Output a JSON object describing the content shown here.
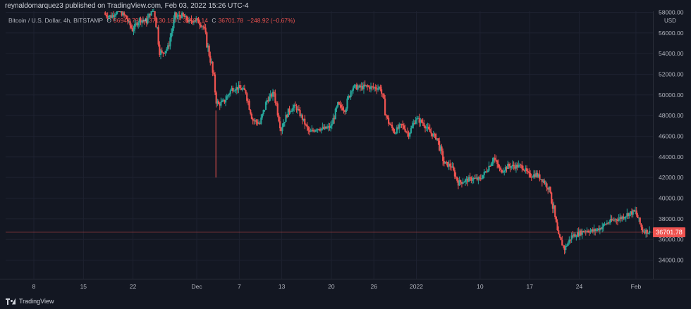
{
  "header": {
    "published_text": "reynaldomarquez3 published on TradingView.com, Feb 03, 2022 15:26 UTC-4"
  },
  "legend": {
    "symbol": "Bitcoin / U.S. Dollar, 4h, BITSTAMP",
    "o_label": "O",
    "o_value": "36947.79",
    "h_label": "H",
    "h_value": "37130.16",
    "l_label": "L",
    "l_value": "36586.14",
    "c_label": "C",
    "c_value": "36701.78",
    "change": "−248.92 (−0.67%)"
  },
  "price_axis": {
    "currency": "USD",
    "current_price": "36701.78",
    "labels": [
      "58000.00",
      "56000.00",
      "54000.00",
      "52000.00",
      "50000.00",
      "48000.00",
      "46000.00",
      "44000.00",
      "42000.00",
      "40000.00",
      "38000.00",
      "36000.00",
      "34000.00"
    ]
  },
  "footer": {
    "brand": "TradingView"
  },
  "colors": {
    "background": "#131722",
    "up": "#26a69a",
    "down": "#ef5350",
    "grid": "#1e2230",
    "text": "#b2b5be"
  },
  "chart_data": {
    "type": "candlestick",
    "title": "Bitcoin / U.S. Dollar, 4h, BITSTAMP",
    "xlabel": "",
    "ylabel": "USD",
    "ylim": [
      32200,
      58100
    ],
    "x_ticks": [
      "8",
      "15",
      "22",
      "Dec",
      "7",
      "13",
      "20",
      "26",
      "2022",
      "10",
      "17",
      "24",
      "Feb"
    ],
    "last_price": 36701.78,
    "grid": true,
    "path_points": [
      {
        "date": "Nov 18",
        "close": 57800
      },
      {
        "date": "Nov 19",
        "close": 57600
      },
      {
        "date": "Nov 20",
        "close": 58200
      },
      {
        "date": "Nov 21",
        "close": 57600
      },
      {
        "date": "Nov 22",
        "close": 56300
      },
      {
        "date": "Nov 23",
        "close": 57300
      },
      {
        "date": "Nov 24",
        "close": 57100
      },
      {
        "date": "Nov 25",
        "close": 58800
      },
      {
        "date": "Nov 26",
        "close": 53900
      },
      {
        "date": "Nov 27",
        "close": 54600
      },
      {
        "date": "Nov 28",
        "close": 57500
      },
      {
        "date": "Nov 29",
        "close": 57700
      },
      {
        "date": "Nov 30",
        "close": 57100
      },
      {
        "date": "Dec 1",
        "close": 57300
      },
      {
        "date": "Dec 2",
        "close": 56600
      },
      {
        "date": "Dec 3",
        "close": 53500
      },
      {
        "date": "Dec 4",
        "close": 49000
      },
      {
        "date": "Dec 5",
        "close": 49400
      },
      {
        "date": "Dec 6",
        "close": 50600
      },
      {
        "date": "Dec 7",
        "close": 50700
      },
      {
        "date": "Dec 8",
        "close": 50300
      },
      {
        "date": "Dec 9",
        "close": 47600
      },
      {
        "date": "Dec 10",
        "close": 47200
      },
      {
        "date": "Dec 11",
        "close": 49500
      },
      {
        "date": "Dec 12",
        "close": 50200
      },
      {
        "date": "Dec 13",
        "close": 46800
      },
      {
        "date": "Dec 14",
        "close": 48400
      },
      {
        "date": "Dec 15",
        "close": 48900
      },
      {
        "date": "Dec 16",
        "close": 47700
      },
      {
        "date": "Dec 17",
        "close": 46300
      },
      {
        "date": "Dec 18",
        "close": 46800
      },
      {
        "date": "Dec 19",
        "close": 46700
      },
      {
        "date": "Dec 20",
        "close": 46900
      },
      {
        "date": "Dec 21",
        "close": 49000
      },
      {
        "date": "Dec 22",
        "close": 48600
      },
      {
        "date": "Dec 23",
        "close": 50800
      },
      {
        "date": "Dec 24",
        "close": 50700
      },
      {
        "date": "Dec 25",
        "close": 50800
      },
      {
        "date": "Dec 26",
        "close": 50700
      },
      {
        "date": "Dec 27",
        "close": 50700
      },
      {
        "date": "Dec 28",
        "close": 47500
      },
      {
        "date": "Dec 29",
        "close": 46400
      },
      {
        "date": "Dec 30",
        "close": 47100
      },
      {
        "date": "Dec 31",
        "close": 46200
      },
      {
        "date": "Jan 1",
        "close": 47700
      },
      {
        "date": "Jan 2",
        "close": 47300
      },
      {
        "date": "Jan 3",
        "close": 46400
      },
      {
        "date": "Jan 4",
        "close": 45800
      },
      {
        "date": "Jan 5",
        "close": 43400
      },
      {
        "date": "Jan 6",
        "close": 43100
      },
      {
        "date": "Jan 7",
        "close": 41500
      },
      {
        "date": "Jan 8",
        "close": 41700
      },
      {
        "date": "Jan 9",
        "close": 41900
      },
      {
        "date": "Jan 10",
        "close": 41800
      },
      {
        "date": "Jan 11",
        "close": 42700
      },
      {
        "date": "Jan 12",
        "close": 43900
      },
      {
        "date": "Jan 13",
        "close": 42600
      },
      {
        "date": "Jan 14",
        "close": 43100
      },
      {
        "date": "Jan 15",
        "close": 43100
      },
      {
        "date": "Jan 16",
        "close": 43100
      },
      {
        "date": "Jan 17",
        "close": 42200
      },
      {
        "date": "Jan 18",
        "close": 42300
      },
      {
        "date": "Jan 19",
        "close": 41700
      },
      {
        "date": "Jan 20",
        "close": 40700
      },
      {
        "date": "Jan 21",
        "close": 36500
      },
      {
        "date": "Jan 22",
        "close": 35100
      },
      {
        "date": "Jan 23",
        "close": 36300
      },
      {
        "date": "Jan 24",
        "close": 36600
      },
      {
        "date": "Jan 25",
        "close": 36900
      },
      {
        "date": "Jan 26",
        "close": 36800
      },
      {
        "date": "Jan 27",
        "close": 37100
      },
      {
        "date": "Jan 28",
        "close": 37600
      },
      {
        "date": "Jan 29",
        "close": 37900
      },
      {
        "date": "Jan 30",
        "close": 38100
      },
      {
        "date": "Jan 31",
        "close": 38500
      },
      {
        "date": "Feb 1",
        "close": 38700
      },
      {
        "date": "Feb 2",
        "close": 36900
      },
      {
        "date": "Feb 3",
        "close": 36701.78
      }
    ]
  }
}
